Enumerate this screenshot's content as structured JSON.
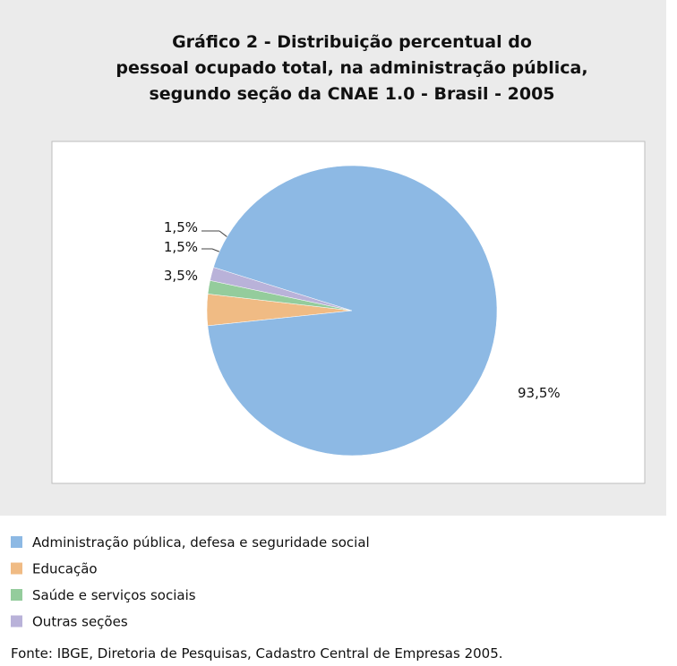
{
  "chart_data": {
    "type": "pie",
    "title": [
      "Gráfico 2 - Distribuição percentual do",
      "pessoal ocupado total, na administração pública,",
      "segundo seção da CNAE 1.0 - Brasil - 2005"
    ],
    "categories": [
      "Administração pública, defesa e seguridade social",
      "Educação",
      "Saúde e serviços sociais",
      "Outras seções"
    ],
    "values": [
      93.5,
      3.5,
      1.5,
      1.5
    ],
    "value_labels": [
      "93,5%",
      "3,5%",
      "1,5%",
      "1,5%"
    ],
    "colors": [
      "#8db9e4",
      "#f0bb84",
      "#94cc9c",
      "#b9b2d9"
    ],
    "source": "Fonte: IBGE, Diretoria de Pesquisas, Cadastro Central de Empresas 2005."
  }
}
